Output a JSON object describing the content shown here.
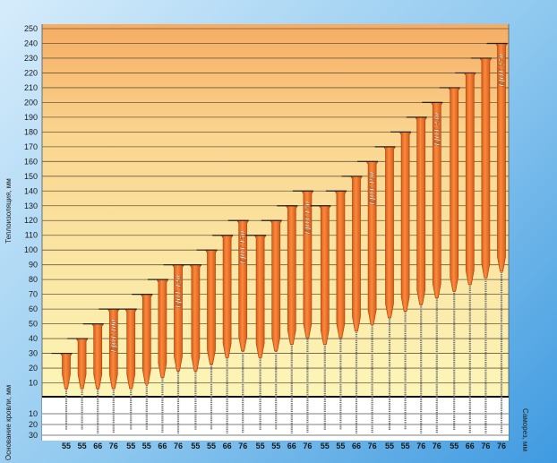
{
  "chart_data": {
    "type": "bar",
    "ylabel": "Теплоизоляция, мм",
    "ylabel_lower": "Основание кровли, мм",
    "xlabel": "Саморез, мм",
    "ylim": [
      0,
      250
    ],
    "yticks": [
      10,
      20,
      30,
      40,
      50,
      60,
      70,
      80,
      90,
      100,
      110,
      120,
      130,
      140,
      150,
      160,
      170,
      180,
      190,
      200,
      210,
      220,
      230,
      240,
      250
    ],
    "lower_ylim": [
      0,
      30
    ],
    "lower_yticks": [
      10,
      20,
      30
    ],
    "groups": [
      {
        "label": "100",
        "screws": [
          "55",
          "55",
          "66",
          "76"
        ],
        "values": [
          30,
          40,
          50,
          60
        ],
        "bar_label": "EJOT 100"
      },
      {
        "label": "120",
        "screws": [
          "55",
          "55",
          "66",
          "76"
        ],
        "values": [
          60,
          70,
          80,
          90
        ],
        "bar_label": "EJOT 120"
      },
      {
        "label": "150",
        "screws": [
          "55",
          "55",
          "66",
          "76"
        ],
        "values": [
          90,
          100,
          110,
          120
        ],
        "bar_label": "EJOT 150"
      },
      {
        "label": "170",
        "screws": [
          "55",
          "55",
          "66",
          "76"
        ],
        "values": [
          110,
          120,
          130,
          140
        ],
        "bar_label": "EJOT 170"
      },
      {
        "label": "190",
        "screws": [
          "55",
          "55",
          "66",
          "76"
        ],
        "values": [
          130,
          140,
          150,
          160
        ],
        "bar_label": "EJOT 190"
      },
      {
        "label": "230",
        "screws": [
          "55",
          "55",
          "76",
          "76"
        ],
        "values": [
          170,
          180,
          190,
          200
        ],
        "bar_label": "EJOT 230"
      },
      {
        "label": "270",
        "screws": [
          "55",
          "66",
          "76",
          "76"
        ],
        "values": [
          210,
          220,
          230,
          240
        ],
        "bar_label": "EJOT 270"
      }
    ],
    "colors": {
      "plot_top": "#f7b36a",
      "plot_bottom": "#fbf3b2",
      "bar_fill": "#f26f1c",
      "bar_dark": "#b6400a",
      "gridline": "#6a5a3a",
      "baseline": "#111111",
      "screw": "#7a7a7a"
    },
    "grid": true
  }
}
